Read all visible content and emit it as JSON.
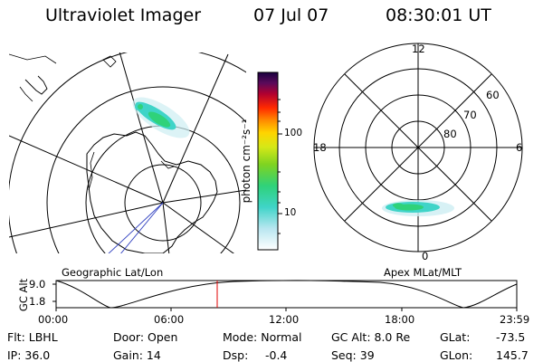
{
  "header": {
    "instrument": "Ultraviolet Imager",
    "date": "07 Jul 07",
    "time": "08:30:01 UT"
  },
  "colorbar": {
    "unit_label": "photon cm⁻²s⁻¹",
    "ticks": [
      "100",
      "10"
    ]
  },
  "left_map": {
    "label": "Geographic Lat/Lon"
  },
  "right_map": {
    "label": "Apex MLat/MLT",
    "mlt_labels": {
      "top": "12",
      "left": "18",
      "right": "6",
      "bottom": "0"
    },
    "lat_labels": [
      "60",
      "70",
      "80"
    ]
  },
  "altitude_plot": {
    "ylabel": "GC Alt",
    "yticks": [
      "9.0",
      "1.8"
    ],
    "xticks": [
      "00:00",
      "06:00",
      "12:00",
      "18:00",
      "23:59"
    ]
  },
  "status": {
    "flt": "Flt: LBHL",
    "ip": "IP: 36.0",
    "door": "Door: Open",
    "gain": "Gain: 14",
    "mode": "Mode: Normal",
    "dsp_label": "Dsp:",
    "dsp_value": "-0.4",
    "gc_alt": "GC Alt: 8.0 Re",
    "seq": "Seq: 39",
    "glat_label": "GLat:",
    "glat_value": "-73.5",
    "glon_label": "GLon:",
    "glon_value": "145.7"
  }
}
